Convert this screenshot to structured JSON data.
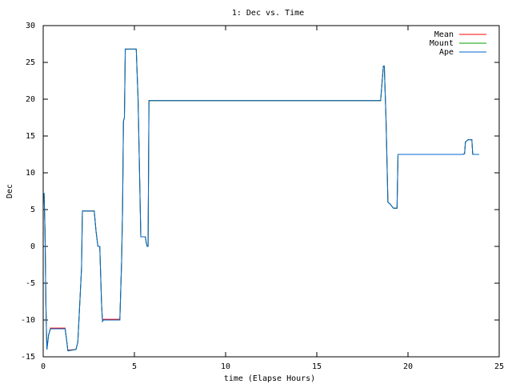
{
  "chart_data": {
    "type": "line",
    "title": "1: Dec vs. Time",
    "x_label": "time (Elapse Hours)",
    "y_label": "Dec",
    "x": [
      0,
      0.05,
      0.1,
      0.15,
      0.2,
      0.3,
      0.4,
      1.2,
      1.3,
      1.35,
      1.8,
      1.9,
      2.0,
      2.1,
      2.15,
      2.8,
      2.9,
      3.0,
      3.1,
      3.2,
      3.25,
      3.3,
      4.2,
      4.3,
      4.35,
      4.4,
      4.45,
      4.5,
      5.1,
      5.2,
      5.3,
      5.35,
      5.6,
      5.65,
      5.7,
      5.75,
      5.8,
      18.5,
      18.6,
      18.65,
      18.7,
      18.8,
      18.9,
      19.0,
      19.1,
      19.2,
      19.4,
      19.45,
      23.0,
      23.1,
      23.15,
      23.3,
      23.5,
      23.55,
      23.9
    ],
    "series": [
      {
        "name": "Mean",
        "color": "#ff0000",
        "values": [
          7.2,
          7.2,
          2,
          -8,
          -14,
          -12,
          -11.1,
          -11.1,
          -13,
          -14.1,
          -14,
          -13,
          -8,
          -3,
          4.8,
          4.8,
          2,
          0,
          0,
          -8,
          -10.1,
          -9.9,
          -9.9,
          -2,
          5,
          17,
          17.5,
          26.8,
          26.8,
          20,
          8,
          1.3,
          1.3,
          0.5,
          0,
          0,
          19.8,
          19.8,
          23,
          24.5,
          24.5,
          17,
          6,
          5.8,
          5.5,
          5.2,
          5.2,
          12.5,
          12.5,
          12.6,
          14.2,
          14.5,
          14.5,
          12.5,
          12.5
        ]
      },
      {
        "name": "Mount",
        "color": "#00a000",
        "values": [
          7.2,
          7.2,
          2,
          -8,
          -14,
          -12,
          -11.2,
          -11.2,
          -13,
          -14.2,
          -14,
          -13,
          -8,
          -3,
          4.8,
          4.8,
          2,
          0,
          0,
          -8,
          -10.2,
          -10,
          -10,
          -2,
          5,
          17,
          17.5,
          26.8,
          26.8,
          20,
          8,
          1.3,
          1.3,
          0.5,
          0,
          0,
          19.8,
          19.8,
          23,
          24.5,
          24.5,
          17,
          6,
          5.8,
          5.5,
          5.2,
          5.2,
          12.5,
          12.5,
          12.6,
          14.2,
          14.5,
          14.5,
          12.5,
          12.5
        ]
      },
      {
        "name": "Ape",
        "color": "#0066cc",
        "values": [
          7.2,
          7.2,
          2,
          -8,
          -14,
          -12,
          -11.2,
          -11.2,
          -13,
          -14.2,
          -14,
          -13,
          -8,
          -3,
          4.8,
          4.8,
          2,
          0,
          0,
          -8,
          -10.2,
          -10,
          -10,
          -2,
          5,
          17,
          17.5,
          26.8,
          26.8,
          20,
          8,
          1.3,
          1.3,
          0.5,
          0,
          0,
          19.8,
          19.8,
          23,
          24.5,
          24.5,
          17,
          6,
          5.8,
          5.5,
          5.2,
          5.2,
          12.5,
          12.5,
          12.6,
          14.2,
          14.5,
          14.5,
          12.5,
          12.5
        ]
      }
    ],
    "xlim": [
      0,
      25
    ],
    "xticks": [
      0,
      5,
      10,
      15,
      20,
      25
    ],
    "ylim": [
      -15,
      30
    ],
    "yticks": [
      -15,
      -10,
      -5,
      0,
      5,
      10,
      15,
      20,
      25,
      30
    ],
    "legend": "top-right",
    "grid": false
  }
}
